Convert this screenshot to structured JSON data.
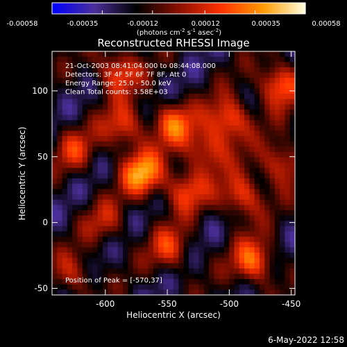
{
  "chart_data": {
    "type": "heatmap",
    "title": "Reconstructed RHESSI Image",
    "xlabel": "Heliocentric X (arcsec)",
    "ylabel": "Heliocentric Y (arcsec)",
    "xlim": [
      -643,
      -447
    ],
    "ylim": [
      -55,
      130
    ],
    "x_ticks": [
      -600,
      -550,
      -500,
      -450
    ],
    "x_tick_labels": [
      "-600",
      "-550",
      "-500",
      "-450"
    ],
    "y_ticks": [
      -50,
      0,
      50,
      100
    ],
    "y_tick_labels": [
      "-50",
      "0",
      "50",
      "100"
    ],
    "colorbar": {
      "range": [
        -0.00058,
        0.00058
      ],
      "tick_values": [
        -0.00058,
        -0.00035,
        -0.00012,
        0.00012,
        0.00035,
        0.00058
      ],
      "tick_labels": [
        "-0.00058",
        "-0.00035",
        "-0.00012",
        "0.00012",
        "0.00035",
        "0.00058"
      ],
      "units_text": "(photons cm",
      "units_exp1": "-2",
      "units_mid": " s",
      "units_exp2": "-1",
      "units_mid2": " asec",
      "units_exp3": "-2",
      "units_end": ")",
      "colormap": [
        "#0000ff",
        "#4b2f9a",
        "#000000",
        "#8a1000",
        "#ff3200",
        "#ff9a00",
        "#ffffe0"
      ]
    },
    "info_lines": [
      "21-Oct-2003 08:41:04.000 to 08:44:08.000",
      "Detectors: 3F 4F 5F 6F 7F 8F, Att 0",
      "Energy Range: 25.0 - 50.0 keV",
      "Clean    Total counts: 3.58E+03"
    ],
    "peak_label": "Position of Peak = [-570,37]",
    "peak_position": [
      -570,
      37
    ],
    "grid_cols": 48,
    "grid_rows": 46,
    "sources": [
      {
        "x": -625,
        "y": 55,
        "amp": 0.0003
      },
      {
        "x": -590,
        "y": 115,
        "amp": 0.00045
      },
      {
        "x": -585,
        "y": 72,
        "amp": 0.0004
      },
      {
        "x": -570,
        "y": 37,
        "amp": 0.00058
      },
      {
        "x": -545,
        "y": 75,
        "amp": 0.00045
      },
      {
        "x": -535,
        "y": 25,
        "amp": 0.0004
      },
      {
        "x": -548,
        "y": -20,
        "amp": 0.00035
      },
      {
        "x": -518,
        "y": 55,
        "amp": 0.0004
      },
      {
        "x": -500,
        "y": 78,
        "amp": 0.0005
      },
      {
        "x": -490,
        "y": 20,
        "amp": 0.00045
      },
      {
        "x": -480,
        "y": -30,
        "amp": 0.0005
      },
      {
        "x": -460,
        "y": 105,
        "amp": 0.0005
      },
      {
        "x": -458,
        "y": 45,
        "amp": 0.0004
      },
      {
        "x": -625,
        "y": -40,
        "amp": 0.0003
      },
      {
        "x": -600,
        "y": 0,
        "amp": 0.00025
      }
    ]
  },
  "timestamp": "6-May-2022 12:58"
}
